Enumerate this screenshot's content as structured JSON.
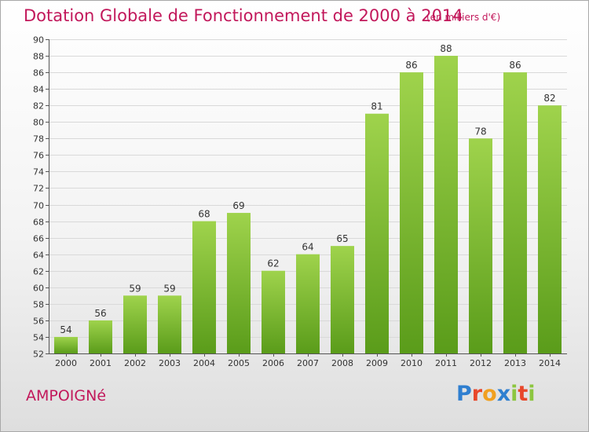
{
  "title": "Dotation Globale de Fonctionnement de 2000 à 2014",
  "unit": "(en milliers d'€)",
  "commune": "AMPOIGNé",
  "logo": {
    "text": "Proxiti",
    "letter_colors": [
      "#2f7fd0",
      "#e8472a",
      "#f0a020",
      "#2f7fd0",
      "#8cc63f",
      "#e8472a",
      "#8cc63f"
    ]
  },
  "colors": {
    "bar_light": "#9fd34c",
    "bar_dark": "#5a9c1a",
    "title": "#c2185b",
    "grid": "#d9d9d9",
    "axis": "#555555"
  },
  "chart_data": {
    "type": "bar",
    "categories": [
      "2000",
      "2001",
      "2002",
      "2003",
      "2004",
      "2005",
      "2006",
      "2007",
      "2008",
      "2009",
      "2010",
      "2011",
      "2012",
      "2013",
      "2014"
    ],
    "values": [
      54,
      56,
      59,
      59,
      68,
      69,
      62,
      64,
      65,
      81,
      86,
      88,
      78,
      86,
      82
    ],
    "ylim": [
      52,
      90
    ],
    "ytick_step": 2,
    "grid": true
  }
}
